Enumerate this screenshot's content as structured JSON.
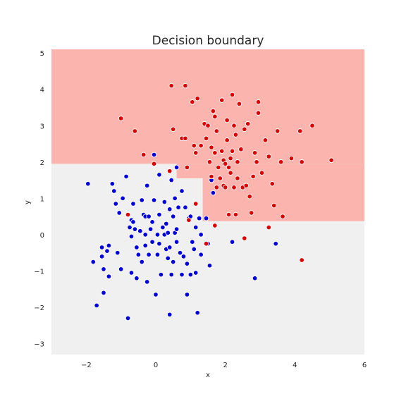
{
  "chart_data": {
    "type": "scatter",
    "title": "Decision boundary",
    "xlabel": "x",
    "ylabel": "y",
    "xlim": [
      -3,
      6
    ],
    "ylim": [
      -3.3,
      5.1
    ],
    "xticks": [
      -2,
      0,
      2,
      4,
      6
    ],
    "yticks": [
      -3,
      -2,
      -1,
      0,
      1,
      2,
      3,
      4,
      5
    ],
    "xtick_labels": [
      "−2",
      "0",
      "2",
      "4",
      "6"
    ],
    "ytick_labels": [
      "−3",
      "−2",
      "−1",
      "0",
      "1",
      "2",
      "3",
      "4",
      "5"
    ],
    "grid": false,
    "colors": {
      "background_region": "#f0f0f0",
      "class_1_region": "#fbb4ae",
      "class_0_points": "#0000dd",
      "class_1_points": "#dd0000",
      "point_edge": "#ffffff"
    },
    "decision_regions": [
      {
        "class": 1,
        "x": [
          -3,
          6
        ],
        "y": [
          1.95,
          5.1
        ]
      },
      {
        "class": 1,
        "x": [
          0.6,
          6
        ],
        "y": [
          1.55,
          1.95
        ]
      },
      {
        "class": 1,
        "x": [
          1.35,
          6
        ],
        "y": [
          0.37,
          1.55
        ]
      }
    ],
    "series": [
      {
        "class": 0,
        "color": "#0000dd",
        "points": [
          [
            -1.95,
            1.4
          ],
          [
            -1.8,
            -0.75
          ],
          [
            -1.7,
            -1.95
          ],
          [
            -1.55,
            -0.35
          ],
          [
            -1.55,
            -0.6
          ],
          [
            -1.5,
            -0.95
          ],
          [
            -1.5,
            -1.6
          ],
          [
            -1.4,
            -0.45
          ],
          [
            -1.35,
            -0.3
          ],
          [
            -1.35,
            -1.15
          ],
          [
            -1.25,
            1.4
          ],
          [
            -1.2,
            1.2
          ],
          [
            -1.15,
            0.85
          ],
          [
            -1.1,
            -0.5
          ],
          [
            -1.05,
            0.6
          ],
          [
            -1.0,
            -0.95
          ],
          [
            -0.95,
            1.0
          ],
          [
            -0.85,
            1.6
          ],
          [
            -0.8,
            -2.3
          ],
          [
            -0.75,
            0.2
          ],
          [
            -0.7,
            0.4
          ],
          [
            -0.7,
            -0.05
          ],
          [
            -0.7,
            -1.05
          ],
          [
            -0.65,
            0.35
          ],
          [
            -0.65,
            0.85
          ],
          [
            -0.6,
            0.15
          ],
          [
            -0.55,
            -0.35
          ],
          [
            -0.55,
            -1.2
          ],
          [
            -0.5,
            -0.55
          ],
          [
            -0.45,
            0.1
          ],
          [
            -0.4,
            0.95
          ],
          [
            -0.4,
            -0.75
          ],
          [
            -0.35,
            0.55
          ],
          [
            -0.3,
            0.0
          ],
          [
            -0.3,
            -0.3
          ],
          [
            -0.3,
            0.5
          ],
          [
            -0.25,
            1.35
          ],
          [
            -0.25,
            -1.3
          ],
          [
            -0.2,
            0.5
          ],
          [
            -0.2,
            -0.55
          ],
          [
            -0.15,
            0.15
          ],
          [
            -0.1,
            0.35
          ],
          [
            -0.1,
            -0.2
          ],
          [
            -0.05,
            0.95
          ],
          [
            -0.05,
            2.2
          ],
          [
            0.0,
            -1.65
          ],
          [
            0.05,
            -0.55
          ],
          [
            0.05,
            0.0
          ],
          [
            0.1,
            -0.25
          ],
          [
            0.1,
            0.55
          ],
          [
            0.1,
            1.65
          ],
          [
            0.15,
            -1.1
          ],
          [
            0.2,
            0.2
          ],
          [
            0.25,
            0.9
          ],
          [
            0.25,
            0.0
          ],
          [
            0.3,
            0.3
          ],
          [
            0.3,
            -0.4
          ],
          [
            0.35,
            0.05
          ],
          [
            0.35,
            -0.65
          ],
          [
            0.4,
            -0.35
          ],
          [
            0.4,
            0.7
          ],
          [
            0.4,
            -2.2
          ],
          [
            0.45,
            1.5
          ],
          [
            0.45,
            -1.1
          ],
          [
            0.5,
            0.5
          ],
          [
            0.5,
            -0.75
          ],
          [
            0.55,
            0.05
          ],
          [
            0.55,
            1.0
          ],
          [
            0.6,
            -0.2
          ],
          [
            0.6,
            1.85
          ],
          [
            0.6,
            0.15
          ],
          [
            0.65,
            0.75
          ],
          [
            0.7,
            -0.5
          ],
          [
            0.75,
            -1.1
          ],
          [
            0.75,
            1.2
          ],
          [
            0.8,
            -0.6
          ],
          [
            0.85,
            0.75
          ],
          [
            0.9,
            -0.8
          ],
          [
            0.9,
            -1.65
          ],
          [
            0.95,
            0.45
          ],
          [
            1.0,
            -1.1
          ],
          [
            1.0,
            0.5
          ],
          [
            1.05,
            -0.2
          ],
          [
            1.1,
            -0.4
          ],
          [
            1.15,
            0.2
          ],
          [
            1.15,
            -1.05
          ],
          [
            1.2,
            -2.15
          ],
          [
            1.25,
            0.45
          ],
          [
            1.3,
            -0.55
          ],
          [
            1.3,
            0.0
          ],
          [
            1.45,
            0.45
          ],
          [
            1.5,
            -0.25
          ],
          [
            1.55,
            -0.85
          ],
          [
            1.6,
            1.5
          ],
          [
            1.65,
            1.15
          ],
          [
            2.2,
            -0.2
          ],
          [
            2.85,
            -1.2
          ],
          [
            3.45,
            -0.25
          ]
        ]
      },
      {
        "class": 1,
        "color": "#dd0000",
        "points": [
          [
            -1.0,
            3.2
          ],
          [
            -0.6,
            2.85
          ],
          [
            -0.35,
            2.2
          ],
          [
            -0.05,
            1.95
          ],
          [
            0.4,
            1.75
          ],
          [
            0.45,
            4.1
          ],
          [
            0.5,
            2.9
          ],
          [
            0.75,
            2.65
          ],
          [
            0.85,
            4.1
          ],
          [
            0.85,
            2.65
          ],
          [
            0.9,
            1.85
          ],
          [
            1.05,
            3.65
          ],
          [
            1.1,
            2.45
          ],
          [
            1.15,
            2.25
          ],
          [
            1.2,
            3.75
          ],
          [
            1.3,
            2.45
          ],
          [
            1.4,
            3.05
          ],
          [
            1.45,
            2.65
          ],
          [
            1.5,
            3.0
          ],
          [
            1.55,
            2.0
          ],
          [
            1.6,
            1.6
          ],
          [
            1.6,
            2.4
          ],
          [
            1.65,
            3.4
          ],
          [
            1.7,
            3.25
          ],
          [
            1.7,
            2.25
          ],
          [
            1.75,
            1.3
          ],
          [
            1.75,
            2.85
          ],
          [
            1.8,
            1.85
          ],
          [
            1.85,
            1.55
          ],
          [
            1.9,
            3.7
          ],
          [
            1.9,
            2.3
          ],
          [
            1.95,
            1.35
          ],
          [
            1.95,
            2.05
          ],
          [
            2.0,
            1.95
          ],
          [
            2.0,
            1.3
          ],
          [
            2.05,
            2.6
          ],
          [
            2.05,
            3.15
          ],
          [
            2.1,
            0.55
          ],
          [
            2.1,
            1.85
          ],
          [
            2.15,
            2.1
          ],
          [
            2.15,
            1.7
          ],
          [
            2.2,
            3.85
          ],
          [
            2.2,
            2.3
          ],
          [
            2.25,
            1.3
          ],
          [
            2.25,
            3.0
          ],
          [
            2.3,
            2.75
          ],
          [
            2.3,
            0.55
          ],
          [
            2.35,
            1.55
          ],
          [
            2.35,
            2.0
          ],
          [
            2.4,
            3.6
          ],
          [
            2.45,
            2.35
          ],
          [
            2.5,
            1.3
          ],
          [
            2.55,
            2.9
          ],
          [
            2.6,
            1.35
          ],
          [
            2.65,
            3.05
          ],
          [
            2.7,
            1.05
          ],
          [
            2.75,
            0.6
          ],
          [
            2.8,
            1.6
          ],
          [
            2.85,
            2.25
          ],
          [
            2.9,
            2.0
          ],
          [
            2.95,
            3.65
          ],
          [
            2.95,
            3.35
          ],
          [
            3.05,
            1.7
          ],
          [
            3.15,
            2.6
          ],
          [
            3.25,
            2.15
          ],
          [
            3.35,
            1.4
          ],
          [
            3.4,
            0.8
          ],
          [
            3.5,
            2.85
          ],
          [
            3.6,
            2.0
          ],
          [
            3.65,
            0.5
          ],
          [
            3.9,
            2.1
          ],
          [
            4.2,
            2.0
          ],
          [
            4.15,
            2.85
          ],
          [
            4.5,
            3.0
          ],
          [
            5.05,
            2.05
          ],
          [
            3.25,
            0.2
          ],
          [
            2.55,
            -0.1
          ],
          [
            4.2,
            -0.7
          ],
          [
            1.7,
            0.25
          ],
          [
            1.45,
            -0.25
          ],
          [
            0.95,
            0.4
          ],
          [
            1.15,
            0.85
          ],
          [
            -0.8,
            0.55
          ]
        ]
      }
    ]
  }
}
